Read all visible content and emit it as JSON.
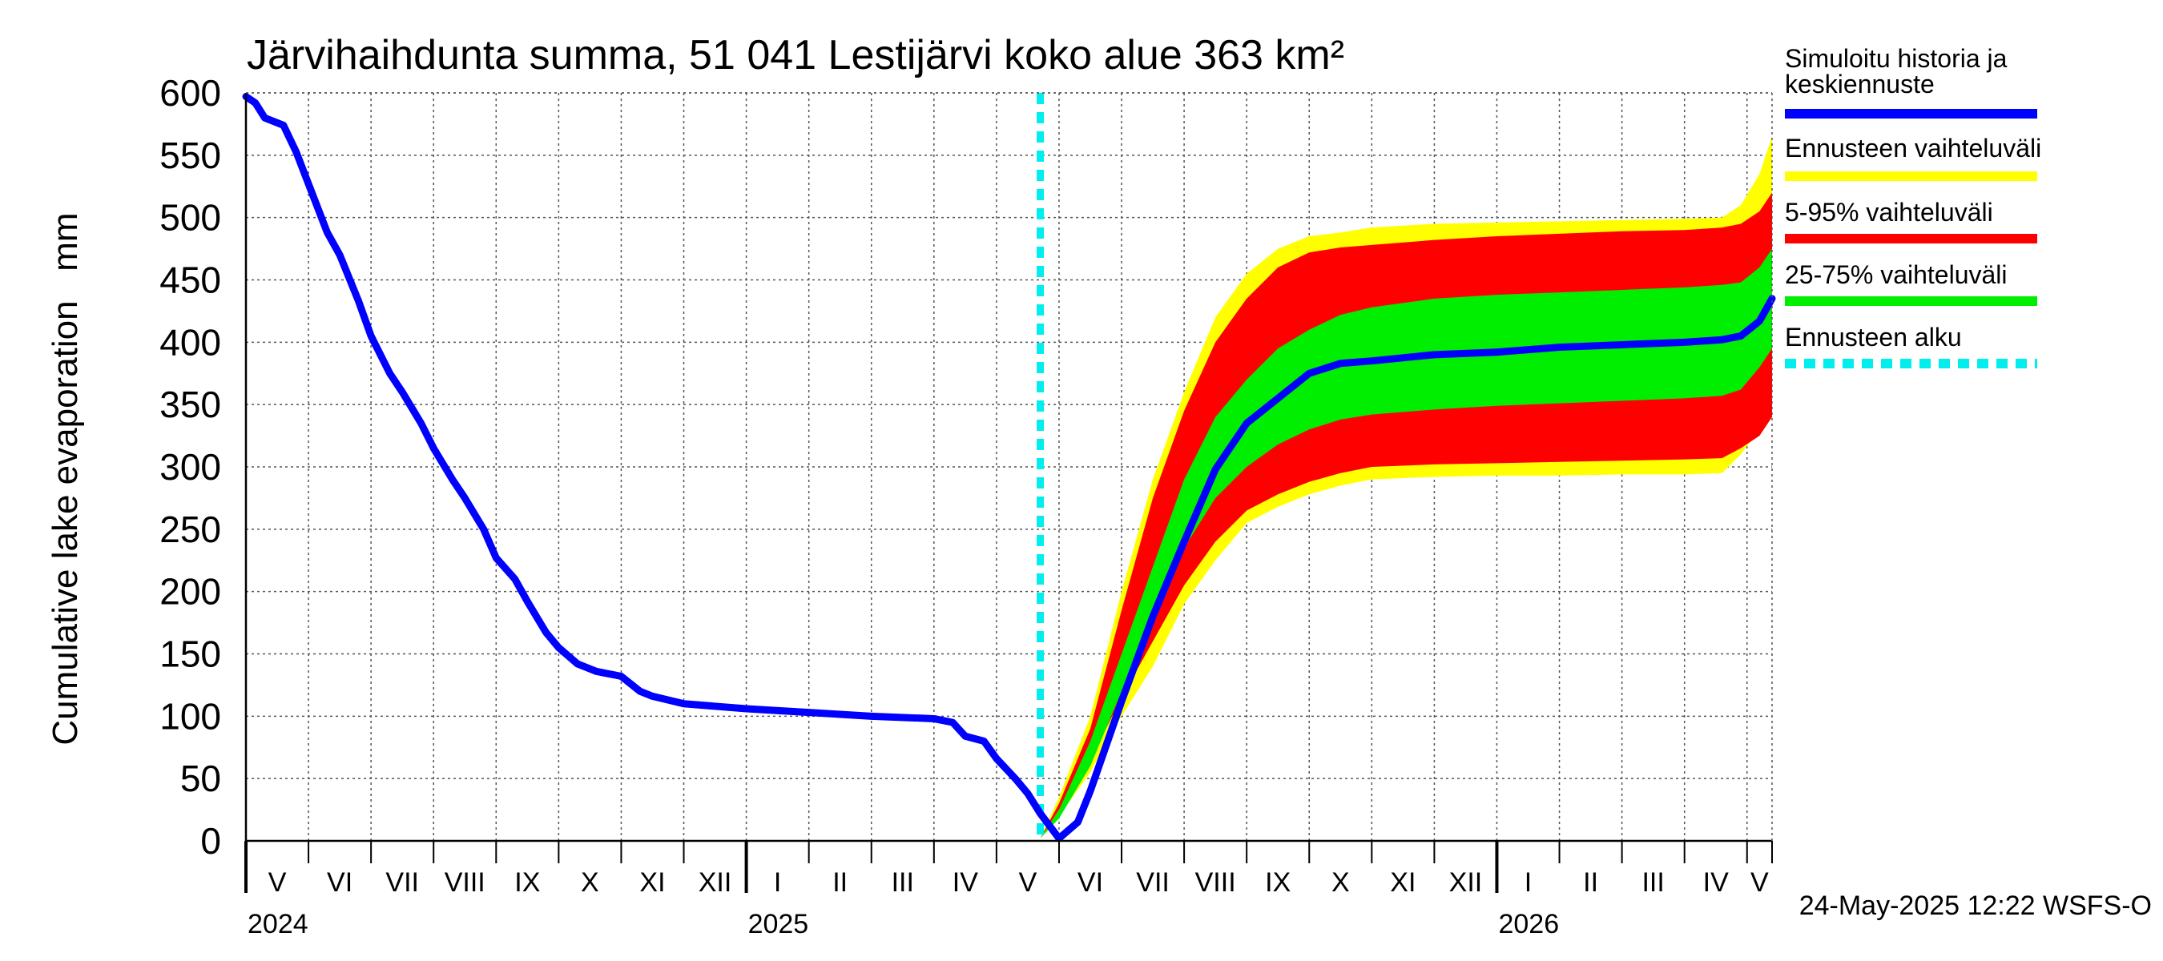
{
  "chart_data": {
    "type": "line",
    "title": "Järvihaihdunta summa, 51 041 Lestijärvi koko alue 363 km²",
    "ylabel": "Cumulative lake evaporation   mm",
    "xlabel": "",
    "ylim": [
      0,
      600
    ],
    "yticks": [
      0,
      50,
      100,
      150,
      200,
      250,
      300,
      350,
      400,
      450,
      500,
      550,
      600
    ],
    "xlim": [
      0,
      24.4
    ],
    "grid": true,
    "months": [
      {
        "label": "V",
        "start": 0
      },
      {
        "label": "VI",
        "start": 1
      },
      {
        "label": "VII",
        "start": 2
      },
      {
        "label": "VIII",
        "start": 3
      },
      {
        "label": "IX",
        "start": 4
      },
      {
        "label": "X",
        "start": 5
      },
      {
        "label": "XI",
        "start": 6
      },
      {
        "label": "XII",
        "start": 7
      },
      {
        "label": "I",
        "start": 8
      },
      {
        "label": "II",
        "start": 9
      },
      {
        "label": "III",
        "start": 10
      },
      {
        "label": "IV",
        "start": 11
      },
      {
        "label": "V",
        "start": 12
      },
      {
        "label": "VI",
        "start": 13
      },
      {
        "label": "VII",
        "start": 14
      },
      {
        "label": "VIII",
        "start": 15
      },
      {
        "label": "IX",
        "start": 16
      },
      {
        "label": "X",
        "start": 17
      },
      {
        "label": "XI",
        "start": 18
      },
      {
        "label": "XII",
        "start": 19
      },
      {
        "label": "I",
        "start": 20
      },
      {
        "label": "II",
        "start": 21
      },
      {
        "label": "III",
        "start": 22
      },
      {
        "label": "IV",
        "start": 23
      },
      {
        "label": "V",
        "start": 24
      }
    ],
    "years": [
      {
        "label": "2024",
        "pos": 0
      },
      {
        "label": "2025",
        "pos": 8
      },
      {
        "label": "2026",
        "pos": 20
      }
    ],
    "forecast_start": 12.7,
    "series": [
      {
        "name": "Simuloitu historia ja keskiennuste",
        "color": "#0000ff",
        "x": [
          0,
          0.15,
          0.3,
          0.6,
          0.8,
          1.0,
          1.3,
          1.5,
          1.8,
          2.0,
          2.3,
          2.5,
          2.8,
          3.0,
          3.3,
          3.5,
          3.8,
          4.0,
          4.3,
          4.5,
          4.8,
          5.0,
          5.3,
          5.6,
          6.0,
          6.3,
          6.5,
          7.0,
          8.0,
          9.0,
          10.0,
          11.0,
          11.3,
          11.5,
          11.8,
          12.0,
          12.3,
          12.5,
          12.7,
          13.0,
          13.3,
          13.5,
          14.0,
          14.5,
          15.0,
          15.5,
          16.0,
          16.5,
          17.0,
          17.5,
          18.0,
          19.0,
          20.0,
          21.0,
          22.0,
          23.0,
          23.6,
          23.9,
          24.2,
          24.4
        ],
        "values": [
          597,
          592,
          580,
          574,
          553,
          527,
          488,
          470,
          433,
          405,
          375,
          360,
          335,
          315,
          290,
          275,
          250,
          227,
          210,
          192,
          167,
          155,
          142,
          136,
          132,
          120,
          116,
          110,
          106,
          103,
          100,
          98,
          95,
          84,
          80,
          66,
          50,
          38,
          22,
          2,
          15,
          40,
          112,
          180,
          240,
          298,
          335,
          355,
          375,
          383,
          385,
          390,
          392,
          396,
          398,
          400,
          402,
          405,
          417,
          435
        ]
      },
      {
        "name": "Ennusteen vaihteluväli",
        "color": "#ffff00",
        "x": [
          12.7,
          13.0,
          13.5,
          14.0,
          14.5,
          15.0,
          15.5,
          16.0,
          16.5,
          17.0,
          17.5,
          18.0,
          19.0,
          20.0,
          21.0,
          22.0,
          23.0,
          23.6,
          23.9,
          24.2,
          24.4
        ],
        "upper": [
          2,
          35,
          100,
          200,
          290,
          360,
          420,
          455,
          475,
          485,
          488,
          492,
          495,
          496,
          497,
          498,
          499,
          500,
          510,
          535,
          565
        ],
        "lower": [
          2,
          20,
          55,
          100,
          140,
          190,
          225,
          255,
          268,
          278,
          285,
          290,
          292,
          293,
          293,
          294,
          294,
          295,
          310,
          330,
          345
        ]
      },
      {
        "name": "5-95% vaihteluväli",
        "color": "#ff0000",
        "x": [
          12.7,
          13.0,
          13.5,
          14.0,
          14.5,
          15.0,
          15.5,
          16.0,
          16.5,
          17.0,
          17.5,
          18.0,
          19.0,
          20.0,
          21.0,
          22.0,
          23.0,
          23.6,
          23.9,
          24.2,
          24.4
        ],
        "upper": [
          2,
          30,
          90,
          185,
          275,
          345,
          400,
          435,
          460,
          472,
          476,
          478,
          482,
          485,
          487,
          489,
          490,
          492,
          495,
          505,
          520
        ],
        "lower": [
          2,
          25,
          65,
          115,
          160,
          205,
          240,
          265,
          278,
          288,
          295,
          300,
          302,
          303,
          304,
          305,
          306,
          307,
          315,
          325,
          340
        ]
      },
      {
        "name": "25-75% vaihteluväli",
        "color": "#00ee00",
        "x": [
          12.7,
          13.0,
          13.5,
          14.0,
          14.5,
          15.0,
          15.5,
          16.0,
          16.5,
          17.0,
          17.5,
          18.0,
          19.0,
          20.0,
          21.0,
          22.0,
          23.0,
          23.6,
          23.9,
          24.2,
          24.4
        ],
        "upper": [
          2,
          25,
          80,
          150,
          220,
          290,
          340,
          370,
          395,
          410,
          422,
          428,
          435,
          438,
          440,
          442,
          444,
          446,
          448,
          460,
          475
        ],
        "lower": [
          2,
          18,
          60,
          120,
          180,
          235,
          275,
          300,
          318,
          330,
          338,
          342,
          346,
          349,
          351,
          353,
          355,
          357,
          362,
          380,
          395
        ]
      },
      {
        "name": "Ennusteen alku",
        "color": "#00eeee"
      }
    ],
    "legend": [
      "Simuloitu historia ja keskiennuste",
      "Ennusteen vaihteluväli",
      "5-95% vaihteluväli",
      "25-75% vaihteluväli",
      "Ennusteen alku"
    ],
    "footer": "24-May-2025 12:22 WSFS-O"
  }
}
